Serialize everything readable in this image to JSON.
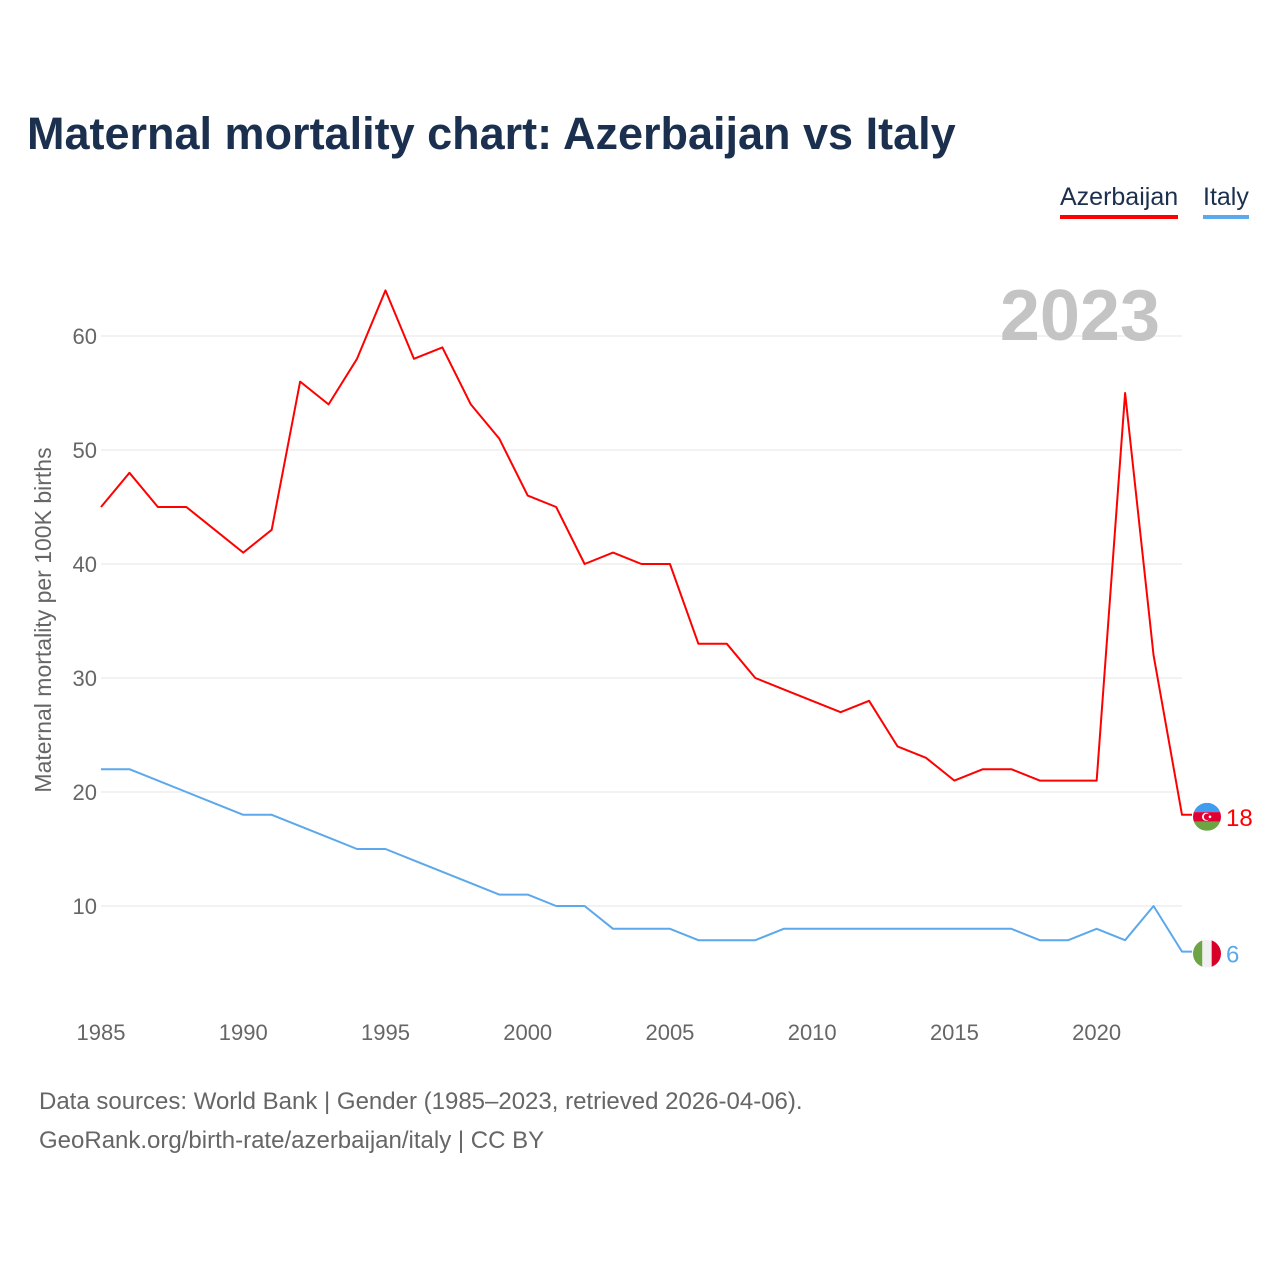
{
  "title": "Maternal mortality chart: Azerbaijan vs Italy",
  "legend": {
    "azerbaijan": "Azerbaijan",
    "italy": "Italy"
  },
  "footer": {
    "line1": "Data sources: World Bank | Gender (1985–2023, retrieved 2026-04-06).",
    "line2": "GeoRank.org/birth-rate/azerbaijan/italy | CC BY"
  },
  "chart_data": {
    "type": "line",
    "title": "Maternal mortality chart: Azerbaijan vs Italy",
    "ylabel": "Maternal mortality per 100K births",
    "xlabel": "",
    "year_label": "2023",
    "xlim": [
      1985,
      2023
    ],
    "ylim": [
      0,
      65
    ],
    "xticks": [
      1985,
      1990,
      1995,
      2000,
      2005,
      2010,
      2015,
      2020
    ],
    "yticks": [
      10,
      20,
      30,
      40,
      50,
      60
    ],
    "grid": true,
    "legend_position": "top-right",
    "x": [
      1985,
      1986,
      1987,
      1988,
      1989,
      1990,
      1991,
      1992,
      1993,
      1994,
      1995,
      1996,
      1997,
      1998,
      1999,
      2000,
      2001,
      2002,
      2003,
      2004,
      2005,
      2006,
      2007,
      2008,
      2009,
      2010,
      2011,
      2012,
      2013,
      2014,
      2015,
      2016,
      2017,
      2018,
      2019,
      2020,
      2021,
      2022,
      2023
    ],
    "series": [
      {
        "name": "Azerbaijan",
        "color": "#ff0000",
        "end_label": "18",
        "values": [
          45,
          48,
          45,
          45,
          43,
          41,
          43,
          56,
          54,
          58,
          64,
          58,
          59,
          54,
          51,
          46,
          45,
          40,
          41,
          40,
          40,
          33,
          33,
          30,
          29,
          28,
          27,
          28,
          24,
          23,
          21,
          22,
          22,
          21,
          21,
          21,
          55,
          32,
          18
        ]
      },
      {
        "name": "Italy",
        "color": "#5ca8ec",
        "end_label": "6",
        "values": [
          22,
          22,
          21,
          20,
          19,
          18,
          18,
          17,
          16,
          15,
          15,
          14,
          13,
          12,
          11,
          11,
          10,
          10,
          8,
          8,
          8,
          7,
          7,
          7,
          8,
          8,
          8,
          8,
          8,
          8,
          8,
          8,
          8,
          7,
          7,
          8,
          7,
          10,
          6
        ]
      }
    ]
  }
}
